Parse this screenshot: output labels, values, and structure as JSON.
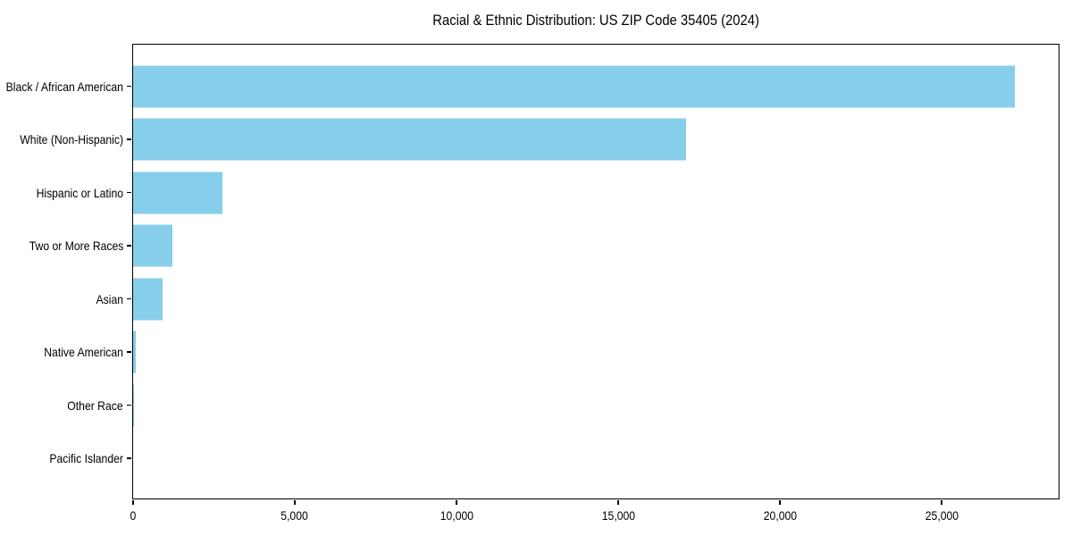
{
  "title": "Racial & Ethnic Distribution: US ZIP Code 35405 (2024)",
  "colors": {
    "bar": "#87CEEB",
    "spine": "#000000",
    "text": "#000000",
    "background": "#ffffff"
  },
  "chart_data": {
    "type": "bar",
    "orientation": "horizontal",
    "title": "Racial & Ethnic Distribution: US ZIP Code 35405 (2024)",
    "categories": [
      "Black / African American",
      "White (Non-Hispanic)",
      "Hispanic or Latino",
      "Two or More Races",
      "Asian",
      "Native American",
      "Other Race",
      "Pacific Islander"
    ],
    "values": [
      27260,
      17110,
      2760,
      1215,
      920,
      85,
      40,
      0
    ],
    "xlabel": "",
    "ylabel": "",
    "xlim": [
      0,
      28620
    ],
    "xticks": [
      0,
      5000,
      10000,
      15000,
      20000,
      25000
    ],
    "xtick_labels": [
      "0",
      "5,000",
      "10,000",
      "15,000",
      "20,000",
      "25,000"
    ],
    "bar_color": "#87CEEB",
    "grid": false,
    "legend": null
  }
}
